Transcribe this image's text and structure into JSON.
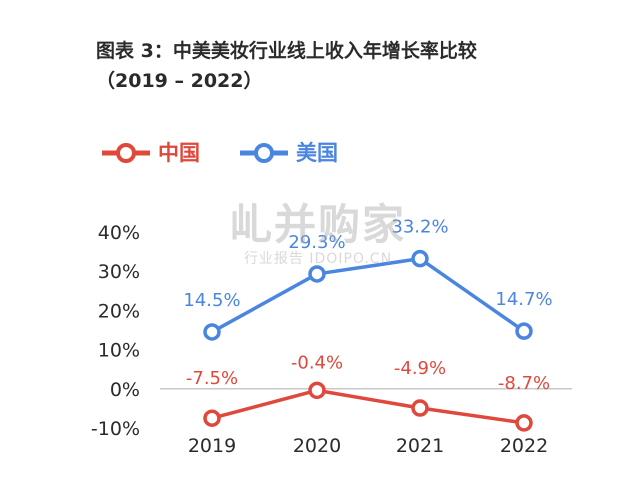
{
  "header": {
    "title_line1": "图表 3：中美美妆行业线上收入年增长率比较",
    "title_line2": "（2019 – 2022）"
  },
  "watermark": {
    "main": "乢并购家",
    "sub": "行业报告 IDOIPO.CN"
  },
  "colors": {
    "china": "#e0483c",
    "usa": "#4a86e0",
    "axis": "#c8c8c8",
    "text": "#2b2b2b"
  },
  "chart_data": {
    "type": "line",
    "categories": [
      "2019",
      "2020",
      "2021",
      "2022"
    ],
    "yticks": [
      "40%",
      "30%",
      "20%",
      "10%",
      "0%",
      "-10%"
    ],
    "ytick_values": [
      40,
      30,
      20,
      10,
      0,
      -10
    ],
    "ylim": [
      -10,
      40
    ],
    "series": [
      {
        "name": "中国",
        "values": [
          -7.5,
          -0.4,
          -4.9,
          -8.7
        ],
        "labels": [
          "-7.5%",
          "-0.4%",
          "-4.9%",
          "-8.7%"
        ]
      },
      {
        "name": "美国",
        "values": [
          14.5,
          29.3,
          33.2,
          14.7
        ],
        "labels": [
          "14.5%",
          "29.3%",
          "33.2%",
          "14.7%"
        ]
      }
    ],
    "legend_position": "top-left",
    "grid": false
  }
}
